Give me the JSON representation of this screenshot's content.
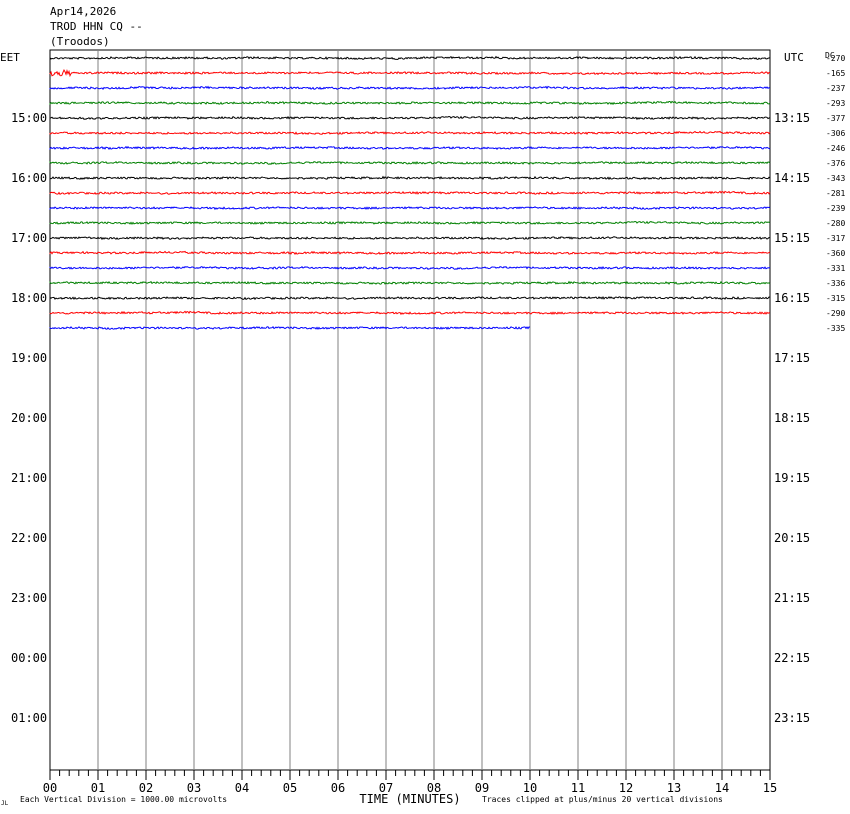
{
  "header": {
    "date": "Apr14,2026",
    "station": "TROD HHN CQ --",
    "location": "(Troodos)"
  },
  "labels": {
    "left_tz": "EET",
    "right_tz": "UTC",
    "dc": "DC",
    "x_title": "TIME (MINUTES)",
    "scale_note": "Each Vertical Division = 1000.00 microvolts",
    "clip_note": "Traces clipped at plus/minus 20 vertical divisions",
    "corner_mark": "JL"
  },
  "chart_data": {
    "type": "line",
    "title": "TROD HHN CQ --",
    "xlabel": "TIME (MINUTES)",
    "ylabel": "",
    "xlim": [
      0,
      15
    ],
    "x_ticks": [
      "00",
      "01",
      "02",
      "03",
      "04",
      "05",
      "06",
      "07",
      "08",
      "09",
      "10",
      "11",
      "12",
      "13",
      "14",
      "15"
    ],
    "left_hour_labels": [
      "15:00",
      "16:00",
      "17:00",
      "18:00",
      "19:00",
      "20:00",
      "21:00",
      "22:00",
      "23:00",
      "00:00",
      "01:00"
    ],
    "right_hour_labels": [
      "13:15",
      "14:15",
      "15:15",
      "16:15",
      "17:15",
      "18:15",
      "19:15",
      "20:15",
      "21:15",
      "22:15",
      "23:15"
    ],
    "trace_colors": [
      "#000000",
      "#ff0000",
      "#0000ff",
      "#008000"
    ],
    "dc_offsets": [
      "-270",
      "-165",
      "-237",
      "-293",
      "-377",
      "-306",
      "-246",
      "-376",
      "-343",
      "-281",
      "-239",
      "-280",
      "-317",
      "-360",
      "-331",
      "-336",
      "-315",
      "-290",
      "-335"
    ],
    "trace_end_minutes": [
      15,
      15,
      15,
      15,
      15,
      15,
      15,
      15,
      15,
      15,
      15,
      15,
      15,
      15,
      15,
      15,
      15,
      15,
      10
    ],
    "grid": true
  }
}
